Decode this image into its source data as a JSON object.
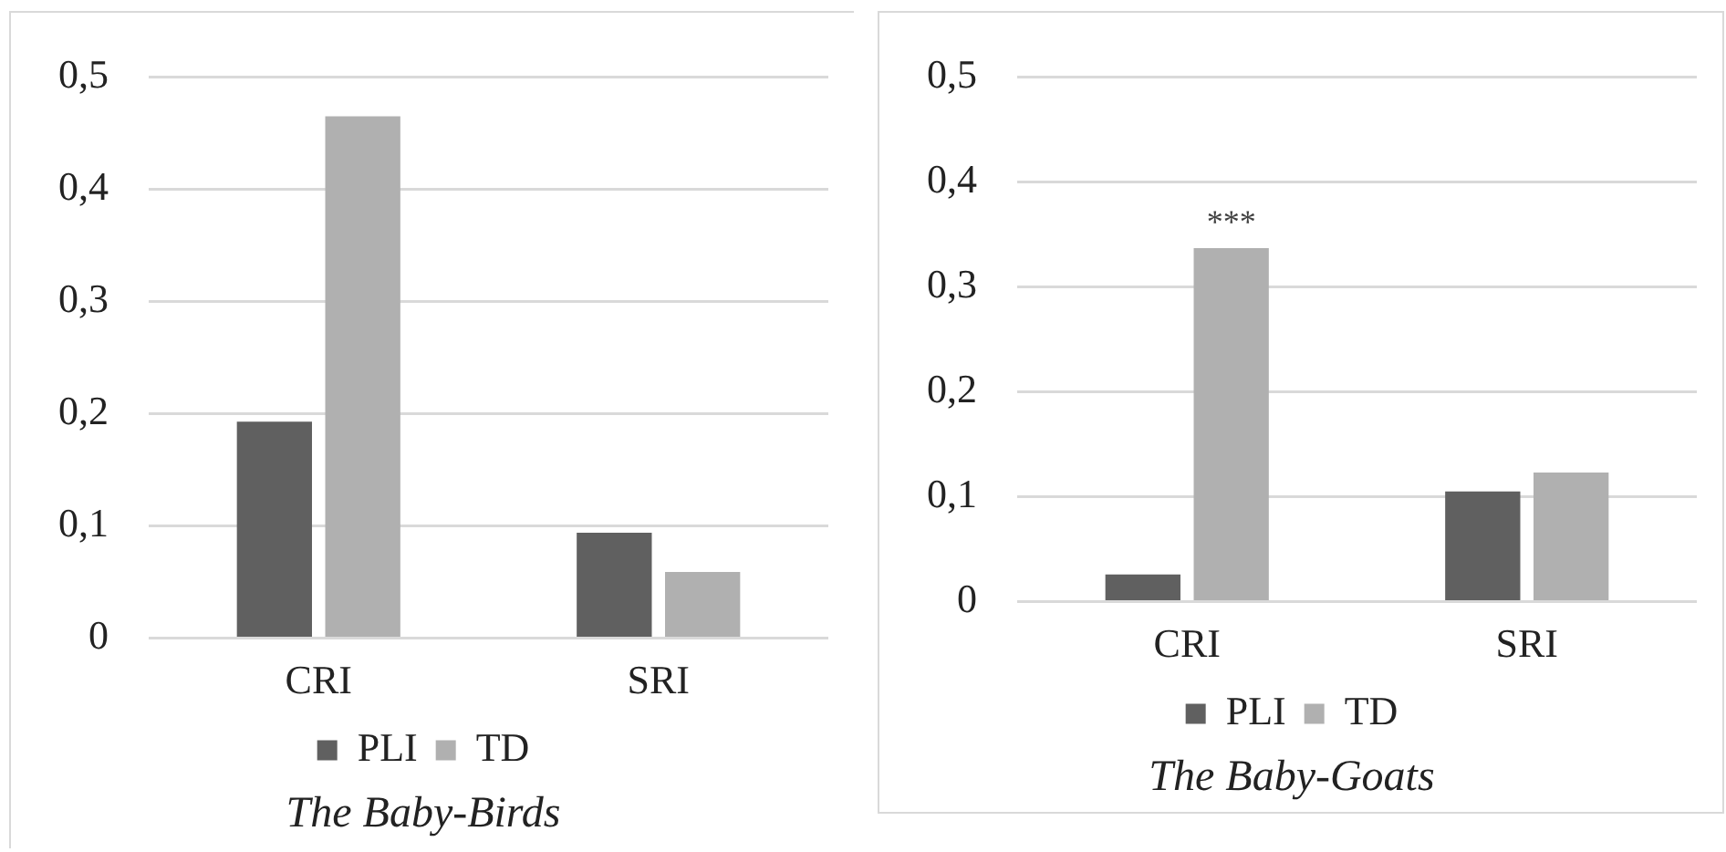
{
  "chart_data": [
    {
      "type": "bar",
      "title": "The Baby-Birds",
      "categories": [
        "CRI",
        "SRI"
      ],
      "series": [
        {
          "name": "PLI",
          "color": "#606060",
          "values": [
            0.193,
            0.094
          ]
        },
        {
          "name": "TD",
          "color": "#b0b0b0",
          "values": [
            0.465,
            0.059
          ]
        }
      ],
      "ylim": [
        0,
        0.5
      ],
      "yticks": [
        {
          "value": 0,
          "label": "0"
        },
        {
          "value": 0.1,
          "label": "0,1"
        },
        {
          "value": 0.2,
          "label": "0,2"
        },
        {
          "value": 0.3,
          "label": "0,3"
        },
        {
          "value": 0.4,
          "label": "0,4"
        },
        {
          "value": 0.5,
          "label": "0,5"
        }
      ],
      "grid": "y",
      "legend": "bottom"
    },
    {
      "type": "bar",
      "title": "The Baby-Goats",
      "categories": [
        "CRI",
        "SRI"
      ],
      "series": [
        {
          "name": "PLI",
          "color": "#606060",
          "values": [
            0.026,
            0.105
          ]
        },
        {
          "name": "TD",
          "color": "#b0b0b0",
          "values": [
            0.337,
            0.123
          ]
        }
      ],
      "ylim": [
        0,
        0.5
      ],
      "yticks": [
        {
          "value": 0,
          "label": "0"
        },
        {
          "value": 0.1,
          "label": "0,1"
        },
        {
          "value": 0.2,
          "label": "0,2"
        },
        {
          "value": 0.3,
          "label": "0,3"
        },
        {
          "value": 0.4,
          "label": "0,4"
        },
        {
          "value": 0.5,
          "label": "0,5"
        }
      ],
      "grid": "y",
      "legend": "bottom",
      "annotations": [
        {
          "text": "***",
          "x": "CRI",
          "y": 0.337
        }
      ]
    }
  ]
}
